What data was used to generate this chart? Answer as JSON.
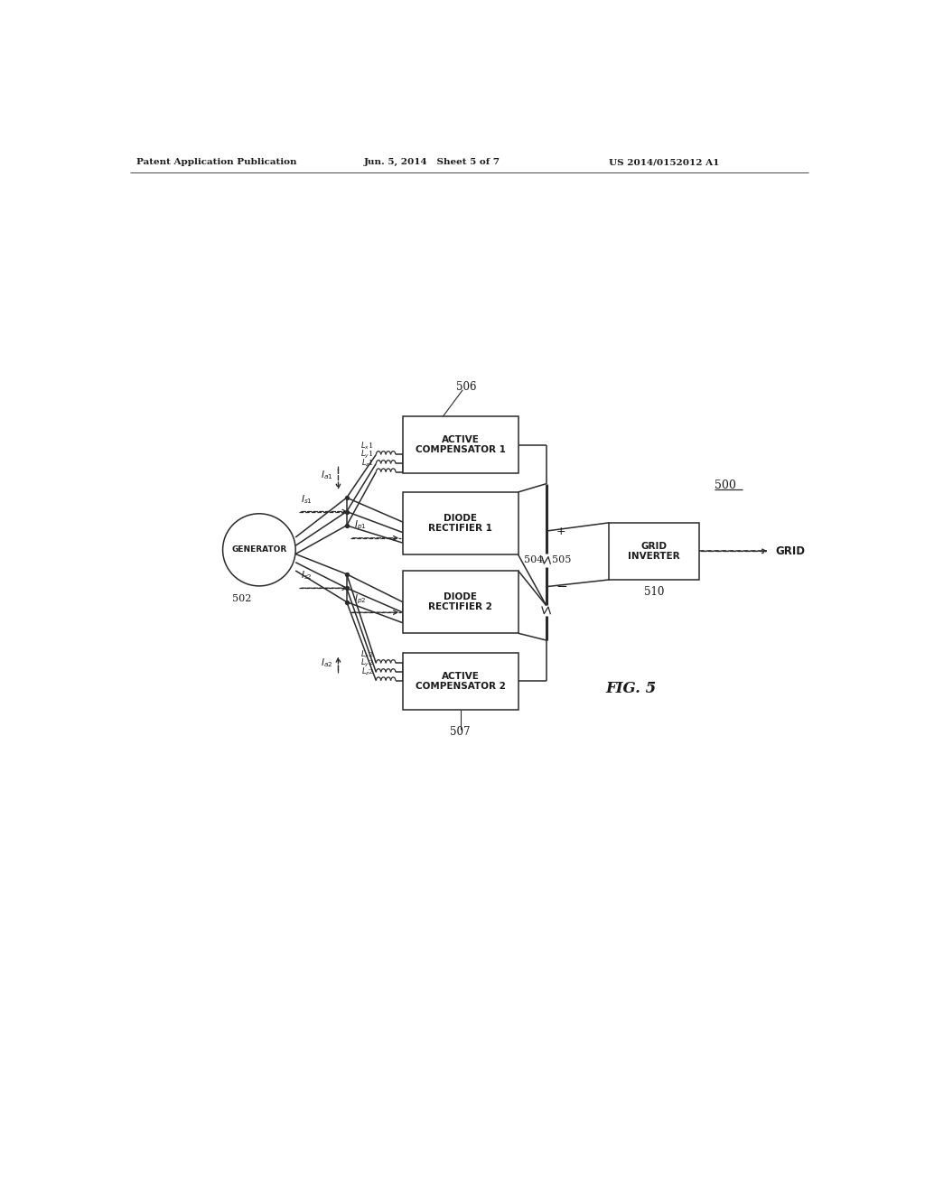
{
  "title_left": "Patent Application Publication",
  "title_center": "Jun. 5, 2014   Sheet 5 of 7",
  "title_right": "US 2014/0152012 A1",
  "fig_label": "FIG. 5",
  "system_label": "500",
  "generator_label": "GENERATOR",
  "generator_num": "502",
  "active_comp1_label": "ACTIVE\nCOMPENSATOR 1",
  "active_comp1_num": "506",
  "active_comp2_label": "ACTIVE\nCOMPENSATOR 2",
  "active_comp2_num": "507",
  "diode_rect1_label": "DIODE\nRECTIFIER 1",
  "diode_rect2_label": "DIODE\nRECTIFIER 2",
  "diode_rect1_num": "504",
  "diode_rect2_num": "505",
  "grid_inv_label": "GRID\nINVERTER",
  "grid_inv_num": "510",
  "grid_label": "GRID",
  "bg_color": "#ffffff",
  "line_color": "#2a2a2a",
  "text_color": "#1a1a1a"
}
